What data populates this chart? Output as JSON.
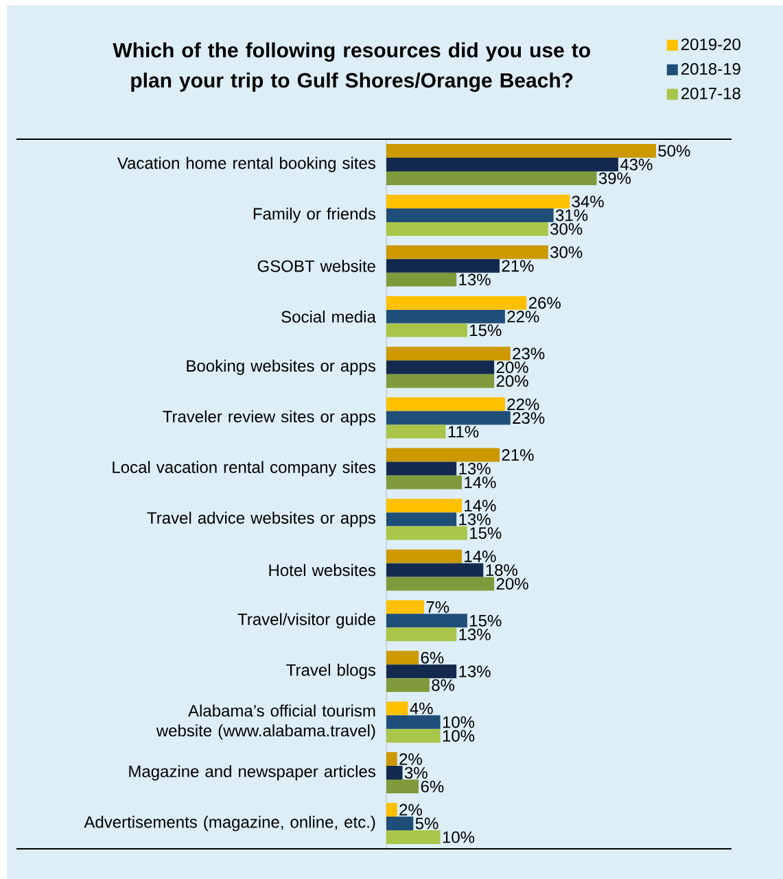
{
  "chart_data": {
    "type": "bar",
    "orientation": "horizontal",
    "title": "Which of the following resources did you use to plan your trip to Gulf Shores/Orange Beach?",
    "categories": [
      "Vacation home rental booking sites",
      "Family or friends",
      "GSOBT website",
      "Social media",
      "Booking websites or apps",
      "Traveler review sites or apps",
      "Local vacation rental company sites",
      "Travel advice websites or apps",
      "Hotel websites",
      "Travel/visitor guide",
      "Travel blogs",
      "Alabama’s official tourism website (www.alabama.travel)",
      "Magazine and newspaper articles",
      "Advertisements (magazine, online, etc.)"
    ],
    "series": [
      {
        "name": "2019-20",
        "color": "#ffc000",
        "colors": [
          "#cc9900",
          "#ffc000",
          "#cc9900",
          "#ffc000",
          "#cc9900",
          "#ffc000",
          "#cc9900",
          "#ffc000",
          "#cc9900",
          "#ffc000",
          "#cc9900",
          "#ffc000",
          "#cc9900",
          "#ffc000"
        ],
        "values": [
          50,
          34,
          30,
          26,
          23,
          22,
          21,
          14,
          14,
          7,
          6,
          4,
          2,
          2
        ],
        "value_labels": [
          "50%",
          "34%",
          "30%",
          "26%",
          "23%",
          "22%",
          "21%",
          "14%",
          "14%",
          "7%",
          "6%",
          "4%",
          "2%",
          "2%"
        ]
      },
      {
        "name": "2018-19",
        "color": "#1f4e79",
        "colors": [
          "#132a4e",
          "#1f4e79",
          "#132a4e",
          "#1f4e79",
          "#132a4e",
          "#1f4e79",
          "#132a4e",
          "#1f4e79",
          "#132a4e",
          "#1f4e79",
          "#132a4e",
          "#1f4e79",
          "#132a4e",
          "#1f4e79"
        ],
        "values": [
          43,
          31,
          21,
          22,
          20,
          23,
          13,
          13,
          18,
          15,
          13,
          10,
          3,
          5
        ],
        "value_labels": [
          "43%",
          "31%",
          "21%",
          "22%",
          "20%",
          "23%",
          "13%",
          "13%",
          "18%",
          "15%",
          "13%",
          "10%",
          "3%",
          "5%"
        ]
      },
      {
        "name": "2017-18",
        "color": "#a9c64a",
        "colors": [
          "#7f9a3a",
          "#a9c64a",
          "#7f9a3a",
          "#a9c64a",
          "#7f9a3a",
          "#a9c64a",
          "#7f9a3a",
          "#a9c64a",
          "#7f9a3a",
          "#a9c64a",
          "#7f9a3a",
          "#a9c64a",
          "#7f9a3a",
          "#a9c64a"
        ],
        "values": [
          39,
          30,
          13,
          15,
          20,
          11,
          14,
          15,
          20,
          13,
          8,
          10,
          6,
          10
        ],
        "value_labels": [
          "39%",
          "30%",
          "13%",
          "15%",
          "20%",
          "11%",
          "14%",
          "15%",
          "20%",
          "13%",
          "8%",
          "10%",
          "6%",
          "10%"
        ]
      }
    ],
    "xlim": [
      0,
      64
    ],
    "tick_labels": "y",
    "legend": "top right"
  }
}
